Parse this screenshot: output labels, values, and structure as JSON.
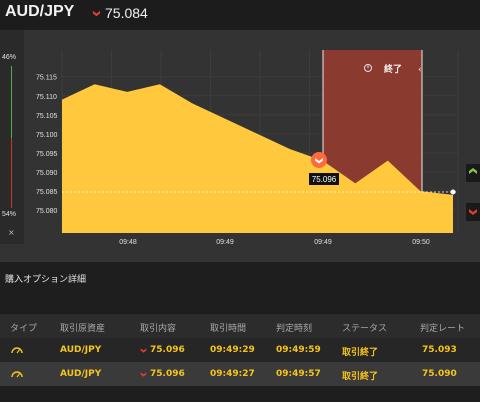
{
  "header": {
    "symbol": "AUD/JPY",
    "price": "75.084",
    "price_direction": "down",
    "down_color": "#e53935"
  },
  "left_panel": {
    "top_percent": "46%",
    "bottom_percent": "54%",
    "close_symbol": "×"
  },
  "chart_data": {
    "type": "area",
    "x": [
      "09:48:20",
      "09:48:30",
      "09:48:40",
      "09:48:50",
      "09:49:00",
      "09:49:10",
      "09:49:20",
      "09:49:30",
      "09:49:40",
      "09:49:50",
      "09:50:00",
      "09:50:10",
      "09:50:20"
    ],
    "values": [
      75.109,
      75.113,
      75.111,
      75.113,
      75.108,
      75.104,
      75.1,
      75.096,
      75.093,
      75.087,
      75.093,
      75.085,
      75.084
    ],
    "ylim": [
      75.074,
      75.122
    ],
    "y_ticks": [
      "75.115",
      "75.110",
      "75.105",
      "75.100",
      "75.095",
      "75.090",
      "75.085",
      "75.080"
    ],
    "x_ticks": [
      "09:48",
      "09:49",
      "09:49",
      "09:50"
    ],
    "fill_color": "#ffc83d",
    "expiry_zone_label": "終了",
    "current_marker": "75.096",
    "grid": true
  },
  "details": {
    "title": "購入オプション詳細",
    "columns": [
      "タイプ",
      "取引原資産",
      "取引内容",
      "取引時間",
      "判定時刻",
      "ステータス",
      "判定レート"
    ],
    "rows": [
      {
        "asset": "AUD/JPY",
        "content": "75.096",
        "trade_time": "09:49:29",
        "judge_time": "09:49:59",
        "status": "取引終了",
        "rate": "75.093"
      },
      {
        "asset": "AUD/JPY",
        "content": "75.096",
        "trade_time": "09:49:27",
        "judge_time": "09:49:57",
        "status": "取引終了",
        "rate": "75.090"
      }
    ]
  }
}
